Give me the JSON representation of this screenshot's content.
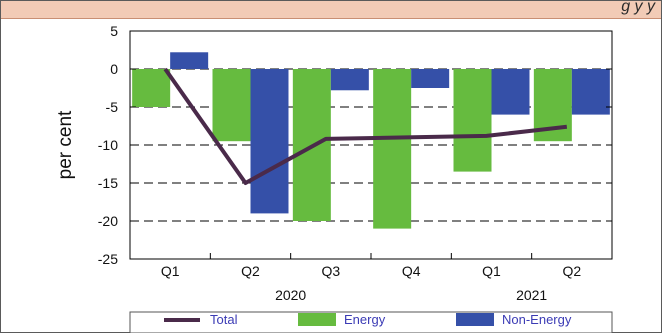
{
  "header": {
    "title_fragment": "g  y                                          y"
  },
  "colors": {
    "total": "#4a2a4a",
    "energy": "#66bb3f",
    "non_energy": "#3550a8",
    "legend_text": "#3b3bb5",
    "title_bg": "#f2cbb6"
  },
  "chart_data": {
    "type": "bar",
    "categories": [
      "Q1",
      "Q2",
      "Q3",
      "Q4",
      "Q1",
      "Q2"
    ],
    "years": [
      {
        "label": "2020",
        "span": [
          0,
          3
        ]
      },
      {
        "label": "2021",
        "span": [
          4,
          5
        ]
      }
    ],
    "series": [
      {
        "name": "Energy",
        "kind": "bar",
        "values": [
          -5.0,
          -9.5,
          -20.0,
          -21.0,
          -13.5,
          -9.5
        ]
      },
      {
        "name": "Non-Energy",
        "kind": "bar",
        "values": [
          2.2,
          -19.0,
          -2.8,
          -2.5,
          -6.0,
          -6.0
        ]
      },
      {
        "name": "Total",
        "kind": "line",
        "values": [
          0.0,
          -15.0,
          -9.2,
          -9.0,
          -8.8,
          -7.6
        ]
      }
    ],
    "ylabel": "per cent",
    "xlabel": "",
    "ylim": [
      -25,
      5
    ],
    "yticks": [
      5,
      0,
      -5,
      -10,
      -15,
      -20,
      -25
    ],
    "grid": "dashed horizontal",
    "legend": "bottom"
  }
}
